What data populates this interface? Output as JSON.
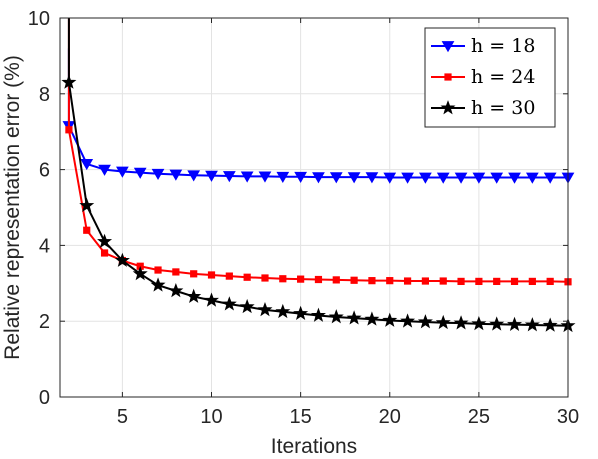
{
  "chart_data": {
    "type": "line",
    "title": "",
    "xlabel": "Iterations",
    "ylabel": "Relative representation error (%)",
    "xlim": [
      1.5,
      30
    ],
    "ylim": [
      0,
      10
    ],
    "xticks": [
      5,
      10,
      15,
      20,
      25,
      30
    ],
    "yticks": [
      0,
      2,
      4,
      6,
      8,
      10
    ],
    "xtick_labels": [
      "5",
      "10",
      "15",
      "20",
      "25",
      "30"
    ],
    "ytick_labels": [
      "0",
      "2",
      "4",
      "6",
      "8",
      "10"
    ],
    "grid": true,
    "legend_position": "top-right",
    "x": [
      2,
      3,
      4,
      5,
      6,
      7,
      8,
      9,
      10,
      11,
      12,
      13,
      14,
      15,
      16,
      17,
      18,
      19,
      20,
      21,
      22,
      23,
      24,
      25,
      26,
      27,
      28,
      29,
      30
    ],
    "series": [
      {
        "name": "h = 18",
        "color": "#0000ff",
        "marker": "triangle-down",
        "start_value": 9.2,
        "values": [
          7.15,
          6.15,
          6.0,
          5.95,
          5.92,
          5.89,
          5.87,
          5.85,
          5.84,
          5.83,
          5.82,
          5.82,
          5.81,
          5.81,
          5.8,
          5.8,
          5.8,
          5.8,
          5.79,
          5.79,
          5.79,
          5.79,
          5.79,
          5.79,
          5.79,
          5.79,
          5.79,
          5.79,
          5.79
        ]
      },
      {
        "name": "h = 24",
        "color": "#ff0000",
        "marker": "square",
        "start_value": 10,
        "values": [
          7.05,
          4.4,
          3.8,
          3.6,
          3.45,
          3.35,
          3.3,
          3.25,
          3.22,
          3.19,
          3.16,
          3.14,
          3.12,
          3.11,
          3.1,
          3.09,
          3.08,
          3.07,
          3.07,
          3.06,
          3.06,
          3.06,
          3.05,
          3.05,
          3.05,
          3.05,
          3.05,
          3.05,
          3.04
        ]
      },
      {
        "name": "h = 30",
        "color": "#000000",
        "marker": "star",
        "start_value": 10,
        "values": [
          8.3,
          5.05,
          4.1,
          3.6,
          3.25,
          2.95,
          2.8,
          2.65,
          2.55,
          2.45,
          2.38,
          2.3,
          2.25,
          2.2,
          2.15,
          2.11,
          2.08,
          2.05,
          2.02,
          2.0,
          1.98,
          1.96,
          1.95,
          1.93,
          1.92,
          1.91,
          1.9,
          1.89,
          1.88
        ]
      }
    ]
  }
}
